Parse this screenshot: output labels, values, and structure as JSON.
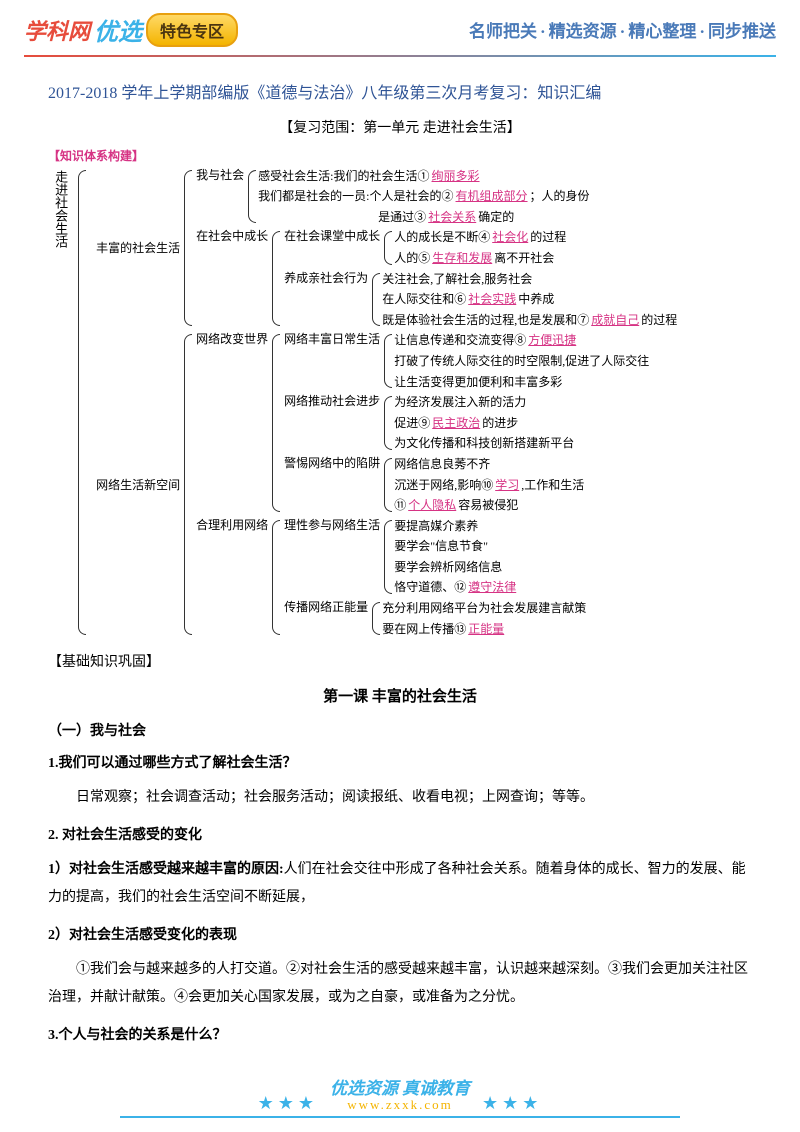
{
  "header": {
    "logo_left": "学科网",
    "logo_right": "优选",
    "badge": "特色专区",
    "tagline_parts": [
      "名师把关",
      "精选资源",
      "精心整理",
      "同步推送"
    ]
  },
  "colors": {
    "title_blue": "#2f5496",
    "pink": "#d63384",
    "star_blue": "#3bb2e8",
    "badge_bg": "#f4b400",
    "tagline_blue": "#4a7ab8"
  },
  "title": "2017-2018 学年上学期部编版《道德与法治》八年级第三次月考复习：知识汇编",
  "scope": "【复习范围：第一单元 走进社会生活】",
  "diagram_label": "【知识体系构建】",
  "root_label": "走进社会生活",
  "tree": {
    "n1": {
      "label": "丰富的社会生活",
      "children": {
        "n1a": {
          "label": "我与社会",
          "lines": [
            {
              "pre": "感受社会生活:我们的社会生活①",
              "fill": "绚丽多彩"
            },
            {
              "pre": "我们都是社会的一员:个人是社会的②",
              "fill": "有机组成部分",
              "post": "；人的身份"
            },
            {
              "pre": "　　　　　　　　　　是通过③",
              "fill": "社会关系",
              "post": "确定的"
            }
          ]
        },
        "n1b": {
          "label": "在社会中成长",
          "children": {
            "n1b1": {
              "label": "在社会课堂中成长",
              "lines": [
                {
                  "pre": "人的成长是不断④",
                  "fill": "社会化",
                  "post": "的过程"
                },
                {
                  "pre": "人的⑤",
                  "fill": "生存和发展",
                  "post": "离不开社会"
                }
              ]
            },
            "n1b2": {
              "label": "养成亲社会行为",
              "lines": [
                {
                  "pre": "关注社会,了解社会,服务社会"
                },
                {
                  "pre": "在人际交往和⑥",
                  "fill": "社会实践",
                  "post": "中养成"
                },
                {
                  "pre": "既是体验社会生活的过程,也是发展和⑦",
                  "fill": "成就自己",
                  "post": "的过程"
                }
              ]
            }
          }
        }
      }
    },
    "n2": {
      "label": "网络生活新空间",
      "children": {
        "n2a": {
          "label": "网络改变世界",
          "children": {
            "n2a1": {
              "label": "网络丰富日常生活",
              "lines": [
                {
                  "pre": "让信息传递和交流变得⑧",
                  "fill": "方便迅捷"
                },
                {
                  "pre": "打破了传统人际交往的时空限制,促进了人际交往"
                },
                {
                  "pre": "让生活变得更加便利和丰富多彩"
                }
              ]
            },
            "n2a2": {
              "label": "网络推动社会进步",
              "lines": [
                {
                  "pre": "为经济发展注入新的活力"
                },
                {
                  "pre": "促进⑨",
                  "fill": "民主政治",
                  "post": "的进步"
                },
                {
                  "pre": "为文化传播和科技创新搭建新平台"
                }
              ]
            },
            "n2a3": {
              "label": "警惕网络中的陷阱",
              "lines": [
                {
                  "pre": "网络信息良莠不齐"
                },
                {
                  "pre": "沉迷于网络,影响⑩",
                  "fill": "学习",
                  "post": ",工作和生活"
                },
                {
                  "pre": "⑪",
                  "fill": "个人隐私",
                  "post": "容易被侵犯"
                }
              ]
            }
          }
        },
        "n2b": {
          "label": "合理利用网络",
          "children": {
            "n2b1": {
              "label": "理性参与网络生活",
              "lines": [
                {
                  "pre": "要提高媒介素养"
                },
                {
                  "pre": "要学会\"信息节食\""
                },
                {
                  "pre": "要学会辨析网络信息"
                },
                {
                  "pre": "恪守道德、⑫",
                  "fill": "遵守法律"
                }
              ]
            },
            "n2b2": {
              "label": "传播网络正能量",
              "lines": [
                {
                  "pre": "充分利用网络平台为社会发展建言献策"
                },
                {
                  "pre": "要在网上传播⑬",
                  "fill": "正能量"
                }
              ]
            }
          }
        }
      }
    }
  },
  "basics_label": "【基础知识巩固】",
  "lesson_title": "第一课  丰富的社会生活",
  "sub_heading": "（一）我与社会",
  "qa": [
    {
      "q": "1.我们可以通过哪些方式了解社会生活？",
      "a": "日常观察；社会调查活动；社会服务活动；阅读报纸、收看电视；上网查询；等等。"
    },
    {
      "q": "2. 对社会生活感受的变化"
    },
    {
      "q": "1）对社会生活感受越来越丰富的原因:",
      "inline": "人们在社会交往中形成了各种社会关系。随着身体的成长、智力的发展、能力的提高，我们的社会生活空间不断延展，"
    },
    {
      "q": "2）对社会生活感受变化的表现",
      "a": "①我们会与越来越多的人打交道。②对社会生活的感受越来越丰富，认识越来越深刻。③我们会更加关注社区治理，并献计献策。④会更加关心国家发展，或为之自豪，或准备为之分忧。"
    },
    {
      "q": "3.个人与社会的关系是什么？"
    }
  ],
  "footer": {
    "stars": "★★★",
    "slogan_a": "优选资源",
    "slogan_b": "真诚教育",
    "url": "www.zxxk.com"
  }
}
